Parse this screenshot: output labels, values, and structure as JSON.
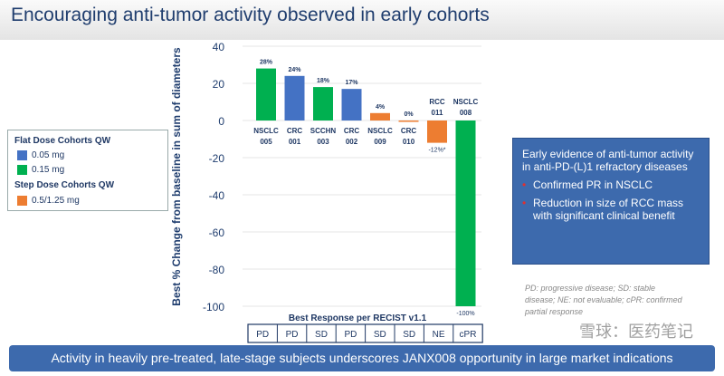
{
  "title": "Encouraging anti-tumor activity observed in early cohorts",
  "legend": {
    "flat_heading": "Flat Dose Cohorts QW",
    "flat_items": [
      {
        "label": "0.05 mg",
        "color": "#4472c4"
      },
      {
        "label": "0.15 mg",
        "color": "#00b050"
      }
    ],
    "step_heading": "Step Dose Cohorts QW",
    "step_items": [
      {
        "label": "0.5/1.25 mg",
        "color": "#ed7d31"
      }
    ]
  },
  "chart_data": {
    "type": "bar",
    "ylabel": "Best % Change from baseline in sum of diameters",
    "ylim": [
      -100,
      40
    ],
    "yticks": [
      40,
      20,
      0,
      -20,
      -40,
      -60,
      -80,
      -100
    ],
    "grid": true,
    "categories": [
      "NSCLC\n005",
      "CRC\n001",
      "SCCHN\n003",
      "CRC\n002",
      "NSCLC\n009",
      "CRC\n010",
      "RCC\n011",
      "NSCLC\n008"
    ],
    "values": [
      28,
      24,
      18,
      17,
      4,
      0,
      -12,
      -100
    ],
    "data_labels": [
      "28%",
      "24%",
      "18%",
      "17%",
      "4%",
      "0%",
      "-12%*",
      "-100%"
    ],
    "colors": [
      "#00b050",
      "#4472c4",
      "#00b050",
      "#4472c4",
      "#ed7d31",
      "#ed7d31",
      "#ed7d31",
      "#00b050"
    ],
    "table_title": "Best Response per RECIST v1.1",
    "responses": [
      "PD",
      "PD",
      "SD",
      "PD",
      "SD",
      "SD",
      "NE",
      "cPR"
    ]
  },
  "rbox": {
    "heading": "Early evidence of anti-tumor activity in anti-PD-(L)1 refractory diseases",
    "bullets": [
      "Confirmed PR in NSCLC",
      "Reduction in size of RCC mass with significant clinical benefit"
    ]
  },
  "note": "PD: progressive disease; SD: stable disease; NE: not evaluable; cPR: confirmed partial response",
  "banner": "Activity in heavily pre-treated, late-stage subjects underscores JANX008 opportunity in large market indications",
  "watermark": "雪球：医药笔记"
}
